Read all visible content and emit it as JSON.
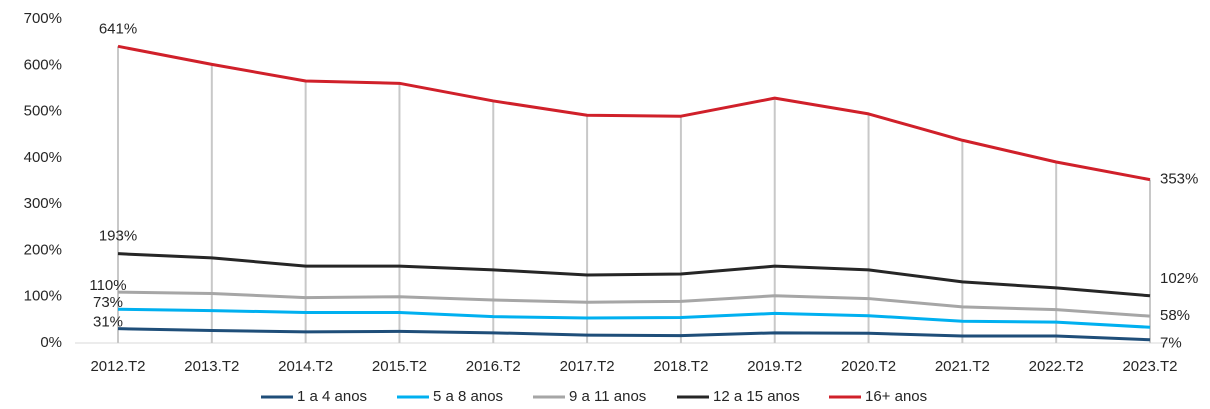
{
  "chart_data": {
    "type": "line",
    "categories": [
      "2012.T2",
      "2013.T2",
      "2014.T2",
      "2015.T2",
      "2016.T2",
      "2017.T2",
      "2018.T2",
      "2019.T2",
      "2020.T2",
      "2021.T2",
      "2022.T2",
      "2023.T2"
    ],
    "series": [
      {
        "name": "1 a 4 anos",
        "color": "#1f4e79",
        "values": [
          31,
          27,
          24,
          25,
          22,
          17,
          16,
          22,
          21,
          15,
          15,
          7
        ],
        "value_labels": [
          "31%",
          null,
          null,
          null,
          null,
          null,
          null,
          null,
          null,
          null,
          null,
          "7%"
        ]
      },
      {
        "name": "5 a 8 anos",
        "color": "#00b0f0",
        "values": [
          73,
          70,
          66,
          66,
          57,
          54,
          55,
          64,
          59,
          47,
          45,
          34
        ],
        "value_labels": [
          "73%",
          null,
          null,
          null,
          null,
          null,
          null,
          null,
          null,
          null,
          null,
          null
        ]
      },
      {
        "name": "9 a 11 anos",
        "color": "#a6a6a6",
        "values": [
          110,
          107,
          98,
          100,
          93,
          88,
          90,
          102,
          96,
          78,
          72,
          58
        ],
        "value_labels": [
          "110%",
          null,
          null,
          null,
          null,
          null,
          null,
          null,
          null,
          null,
          null,
          "58%"
        ]
      },
      {
        "name": "12 a 15 anos",
        "color": "#262626",
        "values": [
          193,
          184,
          166,
          166,
          158,
          147,
          149,
          166,
          158,
          132,
          119,
          102
        ],
        "value_labels": [
          "193%",
          null,
          null,
          null,
          null,
          null,
          null,
          null,
          null,
          null,
          null,
          "102%"
        ]
      },
      {
        "name": "16+ anos",
        "color": "#d0202a",
        "values": [
          641,
          602,
          566,
          561,
          523,
          492,
          490,
          529,
          495,
          438,
          391,
          353
        ],
        "value_labels": [
          "641%",
          null,
          null,
          null,
          null,
          null,
          null,
          null,
          null,
          null,
          null,
          "353%"
        ]
      }
    ],
    "ylim": [
      0,
      700
    ],
    "yticks": [
      {
        "value": 0,
        "label": "0%"
      },
      {
        "value": 100,
        "label": "100%"
      },
      {
        "value": 200,
        "label": "200%"
      },
      {
        "value": 300,
        "label": "300%"
      },
      {
        "value": 400,
        "label": "400%"
      },
      {
        "value": 500,
        "label": "500%"
      },
      {
        "value": 600,
        "label": "600%"
      },
      {
        "value": 700,
        "label": "700%"
      }
    ],
    "legend": "bottom"
  }
}
